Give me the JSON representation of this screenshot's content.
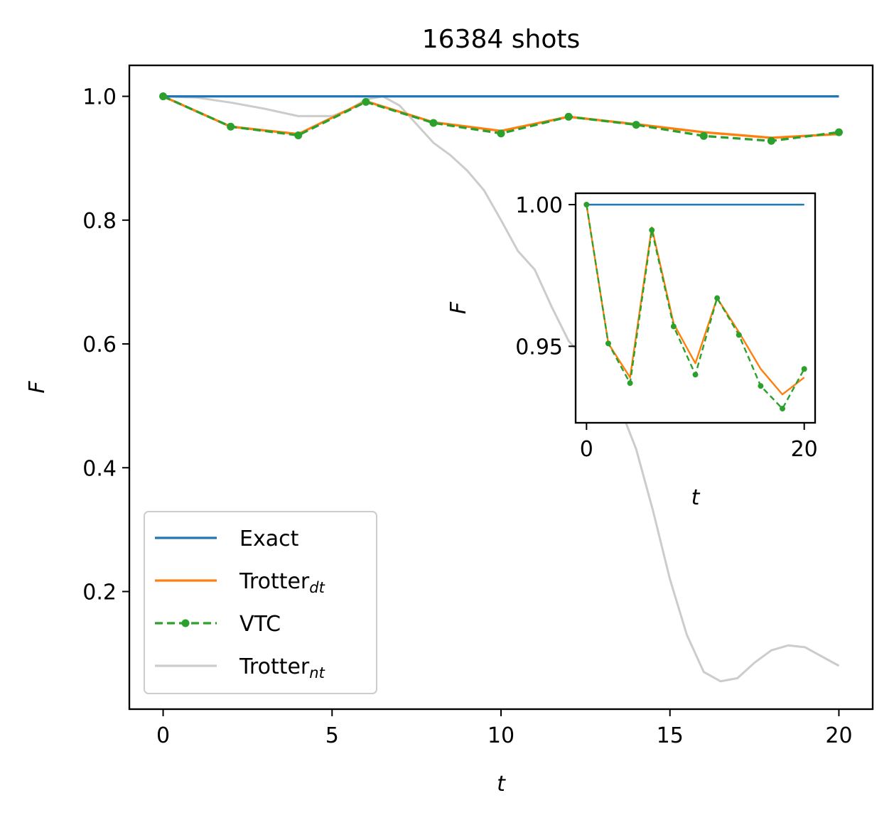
{
  "chart_data": [
    {
      "type": "line",
      "title": "16384 shots",
      "xlabel": "t",
      "ylabel": "F",
      "xlim": [
        -1.0,
        21.0
      ],
      "ylim": [
        0.01,
        1.05
      ],
      "xticks": [
        0,
        5,
        10,
        15,
        20
      ],
      "yticks": [
        0.2,
        0.4,
        0.6,
        0.8,
        1.0
      ],
      "xtick_labels": [
        "0",
        "5",
        "10",
        "15",
        "20"
      ],
      "ytick_labels": [
        "0.2",
        "0.4",
        "0.6",
        "0.8",
        "1.0"
      ],
      "legend": {
        "placement": "lower-left",
        "entries": [
          {
            "label": "Exact",
            "sub": ""
          },
          {
            "label": "Trotter",
            "sub": "dt"
          },
          {
            "label": "VTC",
            "sub": ""
          },
          {
            "label": "Trotter",
            "sub": "nt"
          }
        ]
      },
      "series": [
        {
          "name": "Exact",
          "color": "#1f77b4",
          "style": "solid",
          "marker": "none",
          "x": [
            0,
            20
          ],
          "y": [
            1.0,
            1.0
          ]
        },
        {
          "name": "Trotter_dt",
          "color": "#ff7f0e",
          "style": "solid",
          "marker": "none",
          "x": [
            0,
            2,
            4,
            6,
            8,
            10,
            12,
            14,
            16,
            18,
            20
          ],
          "y": [
            1.0,
            0.951,
            0.939,
            0.992,
            0.958,
            0.944,
            0.967,
            0.955,
            0.942,
            0.933,
            0.939
          ]
        },
        {
          "name": "VTC",
          "color": "#2ca02c",
          "style": "dashed",
          "marker": "circle",
          "x": [
            0,
            2,
            4,
            6,
            8,
            10,
            12,
            14,
            16,
            18,
            20
          ],
          "y": [
            1.0,
            0.951,
            0.937,
            0.991,
            0.957,
            0.94,
            0.967,
            0.954,
            0.936,
            0.928,
            0.942
          ]
        },
        {
          "name": "Trotter_nt",
          "color": "#cccccc",
          "style": "solid",
          "marker": "none",
          "x": [
            0,
            1,
            2,
            3,
            4,
            5,
            5.5,
            6,
            6.5,
            7,
            7.5,
            8,
            8.5,
            9,
            9.5,
            10,
            10.5,
            11,
            11.5,
            12,
            12.5,
            13,
            13.5,
            14,
            14.5,
            15,
            15.5,
            16,
            16.5,
            17,
            17.5,
            18,
            18.5,
            19,
            19.5,
            20
          ],
          "y": [
            1.0,
            0.998,
            0.99,
            0.98,
            0.968,
            0.968,
            0.978,
            0.995,
            1.0,
            0.985,
            0.955,
            0.925,
            0.905,
            0.88,
            0.848,
            0.8,
            0.75,
            0.72,
            0.66,
            0.605,
            0.575,
            0.55,
            0.5,
            0.43,
            0.33,
            0.22,
            0.13,
            0.07,
            0.055,
            0.06,
            0.085,
            0.105,
            0.113,
            0.11,
            0.095,
            0.08
          ]
        }
      ]
    },
    {
      "type": "line",
      "title": "",
      "xlabel": "t",
      "ylabel": "F",
      "xlim": [
        -1.0,
        21.0
      ],
      "ylim": [
        0.923,
        1.004
      ],
      "xticks": [
        0,
        20
      ],
      "yticks": [
        0.95,
        1.0
      ],
      "xtick_labels": [
        "0",
        "20"
      ],
      "ytick_labels": [
        "0.95",
        "1.00"
      ],
      "series": [
        {
          "name": "Exact",
          "color": "#1f77b4",
          "style": "solid",
          "marker": "none",
          "x": [
            0,
            20
          ],
          "y": [
            1.0,
            1.0
          ]
        },
        {
          "name": "Trotter_dt",
          "color": "#ff7f0e",
          "style": "solid",
          "marker": "none",
          "x": [
            0,
            2,
            4,
            6,
            8,
            10,
            12,
            14,
            16,
            18,
            20
          ],
          "y": [
            1.0,
            0.951,
            0.939,
            0.992,
            0.958,
            0.944,
            0.967,
            0.955,
            0.942,
            0.933,
            0.939
          ]
        },
        {
          "name": "VTC",
          "color": "#2ca02c",
          "style": "dashed",
          "marker": "circle",
          "x": [
            0,
            2,
            4,
            6,
            8,
            10,
            12,
            14,
            16,
            18,
            20
          ],
          "y": [
            1.0,
            0.951,
            0.937,
            0.991,
            0.957,
            0.94,
            0.967,
            0.954,
            0.936,
            0.928,
            0.942
          ]
        }
      ]
    }
  ]
}
